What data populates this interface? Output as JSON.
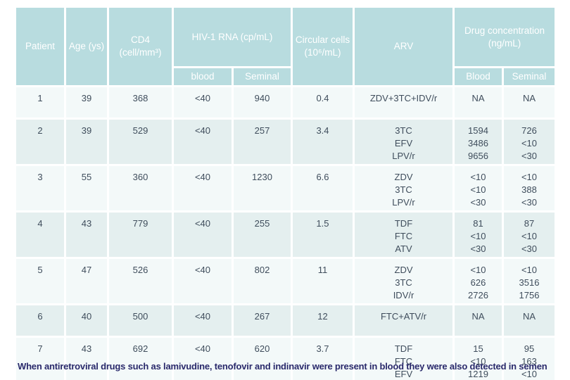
{
  "table": {
    "columns": {
      "patient": "Patient",
      "age": "Age (ys)",
      "cd4": "CD4 (cell/mm³)",
      "hiv_rna": "HIV-1 RNA (cp/mL)",
      "hiv_sub": [
        "blood",
        "Seminal"
      ],
      "circular": "Circular cells (10⁶/mL)",
      "arv": "ARV",
      "drug": "Drug concentration (ng/mL)",
      "drug_sub": [
        "Blood",
        "Seminal"
      ]
    },
    "rows": [
      {
        "patient": "1",
        "age": "39",
        "cd4": "368",
        "rna_blood": "<40",
        "rna_seminal": "940",
        "circular": "0.4",
        "arv": [
          "ZDV+3TC+IDV/r"
        ],
        "drug_blood": [
          "NA"
        ],
        "drug_seminal": [
          "NA"
        ]
      },
      {
        "patient": "2",
        "age": "39",
        "cd4": "529",
        "rna_blood": "<40",
        "rna_seminal": "257",
        "circular": "3.4",
        "arv": [
          "3TC",
          "EFV",
          "LPV/r"
        ],
        "drug_blood": [
          "1594",
          "3486",
          "9656"
        ],
        "drug_seminal": [
          "726",
          "<10",
          "<30"
        ]
      },
      {
        "patient": "3",
        "age": "55",
        "cd4": "360",
        "rna_blood": "<40",
        "rna_seminal": "1230",
        "circular": "6.6",
        "arv": [
          "ZDV",
          "3TC",
          "LPV/r"
        ],
        "drug_blood": [
          "<10",
          "<10",
          "<30"
        ],
        "drug_seminal": [
          "<10",
          "388",
          "<30"
        ]
      },
      {
        "patient": "4",
        "age": "43",
        "cd4": "779",
        "rna_blood": "<40",
        "rna_seminal": "255",
        "circular": "1.5",
        "arv": [
          "TDF",
          "FTC",
          "ATV"
        ],
        "drug_blood": [
          "81",
          "<10",
          "<30"
        ],
        "drug_seminal": [
          "87",
          "<10",
          "<30"
        ]
      },
      {
        "patient": "5",
        "age": "47",
        "cd4": "526",
        "rna_blood": "<40",
        "rna_seminal": "802",
        "circular": "11",
        "arv": [
          "ZDV",
          "3TC",
          "IDV/r"
        ],
        "drug_blood": [
          "<10",
          "626",
          "2726"
        ],
        "drug_seminal": [
          "<10",
          "3516",
          "1756"
        ]
      },
      {
        "patient": "6",
        "age": "40",
        "cd4": "500",
        "rna_blood": "<40",
        "rna_seminal": "267",
        "circular": "12",
        "arv": [
          "FTC+ATV/r"
        ],
        "drug_blood": [
          "NA"
        ],
        "drug_seminal": [
          "NA"
        ]
      },
      {
        "patient": "7",
        "age": "43",
        "cd4": "692",
        "rna_blood": "<40",
        "rna_seminal": "620",
        "circular": "3.7",
        "arv": [
          "TDF",
          "FTC",
          "EFV"
        ],
        "drug_blood": [
          "15",
          "<10",
          "1219"
        ],
        "drug_seminal": [
          "95",
          "163",
          "<10"
        ]
      }
    ]
  },
  "caption": "When antiretroviral drugs such as lamivudine, tenofovir and indinavir were present in blood they were also detected in semen"
}
